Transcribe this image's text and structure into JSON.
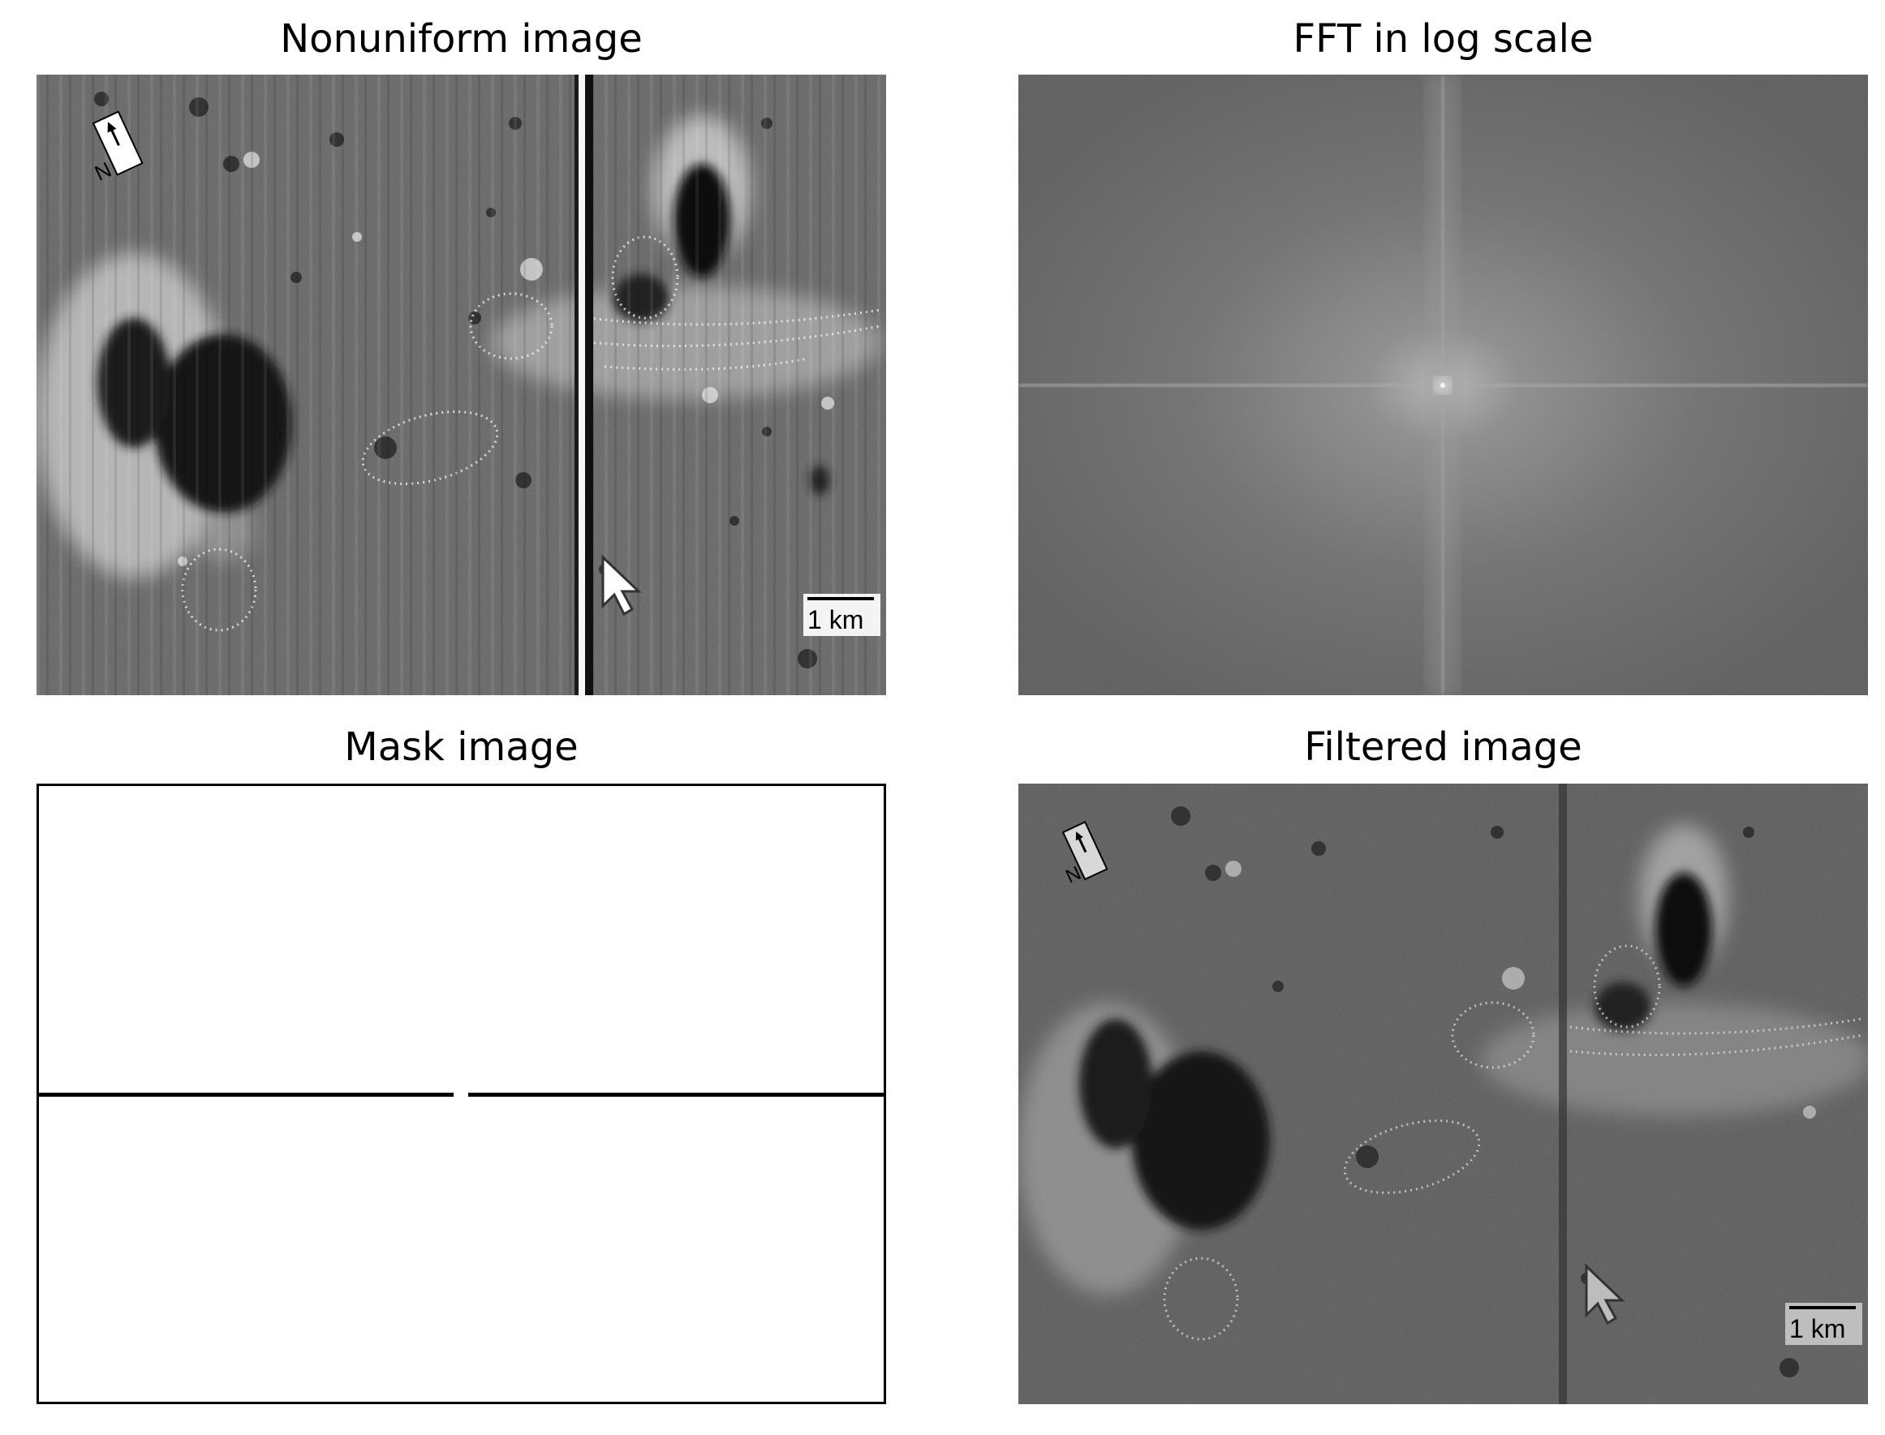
{
  "panels": {
    "top_left": {
      "title": "Nonuniform image",
      "overlay": {
        "scale_label": "1 km",
        "north_label": "N"
      }
    },
    "top_right": {
      "title": "FFT in log scale"
    },
    "bottom_left": {
      "title": "Mask image"
    },
    "bottom_right": {
      "title": "Filtered image",
      "overlay": {
        "scale_label": "1 km",
        "north_label": "N"
      }
    }
  }
}
